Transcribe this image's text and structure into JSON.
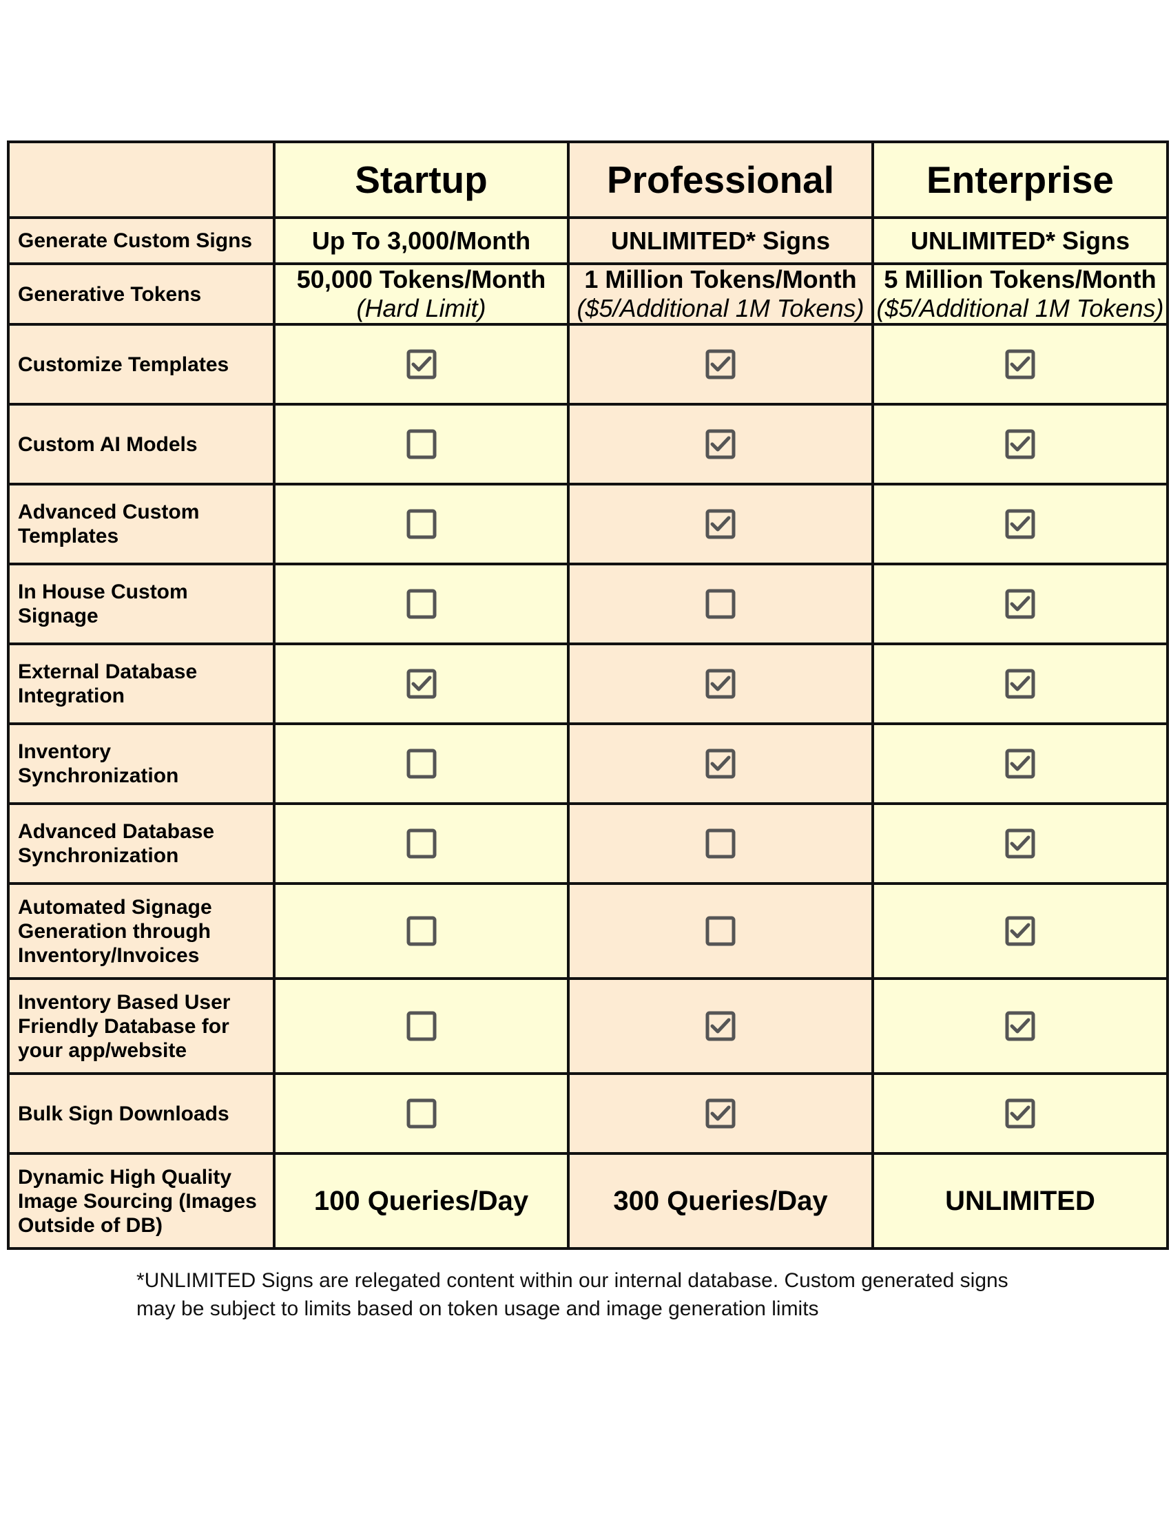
{
  "plans": [
    "Startup",
    "Professional",
    "Enterprise"
  ],
  "signs": {
    "label": "Generate Custom Signs",
    "values": [
      "Up To 3,000/Month",
      "UNLIMITED* Signs",
      "UNLIMITED* Signs"
    ]
  },
  "tokens": {
    "label": "Generative Tokens",
    "values": [
      {
        "main": "50,000 Tokens/Month",
        "sub": "(Hard Limit)"
      },
      {
        "main": "1 Million Tokens/Month",
        "sub": "($5/Additional 1M Tokens)"
      },
      {
        "main": "5 Million Tokens/Month",
        "sub": "($5/Additional 1M Tokens)"
      }
    ]
  },
  "features": [
    {
      "label": "Customize Templates",
      "included": [
        true,
        true,
        true
      ]
    },
    {
      "label": "Custom AI Models",
      "included": [
        false,
        true,
        true
      ]
    },
    {
      "label": "Advanced Custom Templates",
      "included": [
        false,
        true,
        true
      ]
    },
    {
      "label": "In House Custom Signage",
      "included": [
        false,
        false,
        true
      ]
    },
    {
      "label": "External Database Integration",
      "included": [
        true,
        true,
        true
      ]
    },
    {
      "label": "Inventory Synchronization",
      "included": [
        false,
        true,
        true
      ]
    },
    {
      "label": "Advanced Database Synchronization",
      "included": [
        false,
        false,
        true
      ]
    },
    {
      "label": "Automated Signage Generation through Inventory/Invoices",
      "included": [
        false,
        false,
        true
      ]
    },
    {
      "label": "Inventory Based User Friendly Database for your app/website",
      "included": [
        false,
        true,
        true
      ]
    },
    {
      "label": "Bulk Sign Downloads",
      "included": [
        false,
        true,
        true
      ]
    }
  ],
  "image_sourcing": {
    "label": "Dynamic High Quality Image Sourcing (Images Outside of DB)",
    "values": [
      "100 Queries/Day",
      "300 Queries/Day",
      "UNLIMITED"
    ]
  },
  "footnote": "*UNLIMITED Signs are relegated content within our internal database. Custom generated signs may be subject to limits based on token usage and image generation limits",
  "colors": {
    "peach": "#fdebd3",
    "yellow": "#fefdd7",
    "checkbox": "#555555"
  }
}
